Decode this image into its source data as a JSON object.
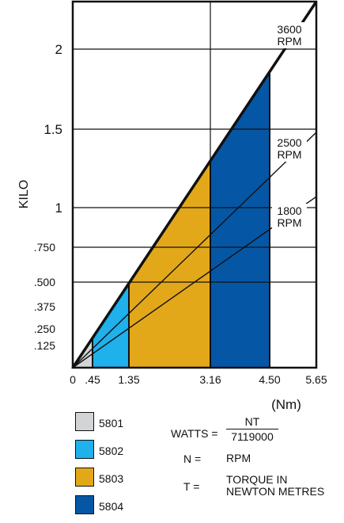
{
  "chart_data": {
    "type": "area",
    "ylabel": "KILO",
    "xlabel": "(Nm)",
    "xlim": [
      0,
      5.65
    ],
    "ylim": [
      0,
      2.25
    ],
    "x_ticks": [
      {
        "value": 0,
        "label": "0"
      },
      {
        "value": 0.45,
        "label": ".45"
      },
      {
        "value": 1.35,
        "label": "1.35"
      },
      {
        "value": 3.16,
        "label": "3.16"
      },
      {
        "value": 4.5,
        "label": "4.50"
      },
      {
        "value": 5.65,
        "label": "5.65"
      }
    ],
    "y_ticks": [
      {
        "value": 0.125,
        "label": ".125"
      },
      {
        "value": 0.25,
        "label": ".250"
      },
      {
        "value": 0.375,
        "label": ".375"
      },
      {
        "value": 0.5,
        "label": ".500"
      },
      {
        "value": 0.75,
        "label": ".750"
      },
      {
        "value": 1,
        "label": "1"
      },
      {
        "value": 1.5,
        "label": "1.5"
      },
      {
        "value": 2,
        "label": "2"
      }
    ],
    "gridlines": {
      "horizontal": [
        0.5,
        0.75,
        1,
        1.5,
        2
      ],
      "vertical": [
        3.16
      ]
    },
    "series": [
      {
        "name": "5801",
        "color": "#d3d4d6",
        "x_range": [
          0,
          0.45
        ]
      },
      {
        "name": "5802",
        "color": "#1eb1ec",
        "x_range": [
          0.45,
          1.35
        ]
      },
      {
        "name": "5803",
        "color": "#e3a81a",
        "x_range": [
          1.35,
          3.16
        ]
      },
      {
        "name": "5804",
        "color": "#0557a5",
        "x_range": [
          3.16,
          4.5
        ]
      }
    ],
    "rpm_lines": [
      {
        "rpm": 3600,
        "label_1": "3600",
        "label_2": "RPM",
        "y_at_x": [
          5.65,
          2.25
        ]
      },
      {
        "rpm": 2500,
        "label_1": "2500",
        "label_2": "RPM",
        "y_at_x": [
          5.65,
          1.48
        ]
      },
      {
        "rpm": 1800,
        "label_1": "1800",
        "label_2": "RPM",
        "y_at_x": [
          5.65,
          1.07
        ]
      }
    ]
  },
  "legend": [
    {
      "label": "5801",
      "color": "#d3d4d6"
    },
    {
      "label": "5802",
      "color": "#1eb1ec"
    },
    {
      "label": "5803",
      "color": "#e3a81a"
    },
    {
      "label": "5804",
      "color": "#0557a5"
    }
  ],
  "formula": {
    "watts_label": "WATTS =",
    "numerator": "NT",
    "denominator": "7119000",
    "n_label": "N =",
    "n_value": "RPM",
    "t_label": "T =",
    "t_value_1": "TORQUE IN",
    "t_value_2": "NEWTON METRES"
  }
}
